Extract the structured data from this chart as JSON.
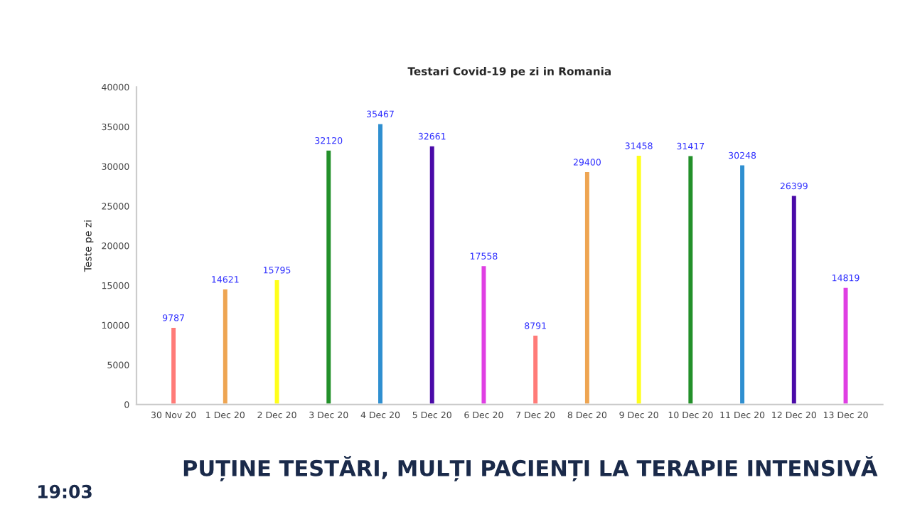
{
  "chart_data": {
    "type": "bar",
    "title": "Testari Covid-19 pe zi in Romania",
    "ylabel": "Teste pe zi",
    "categories": [
      "30 Nov 20",
      "1 Dec 20",
      "2 Dec 20",
      "3 Dec 20",
      "4 Dec 20",
      "5 Dec 20",
      "6 Dec 20",
      "7 Dec 20",
      "8 Dec 20",
      "9 Dec 20",
      "10 Dec 20",
      "11 Dec 20",
      "12 Dec 20",
      "13 Dec 20"
    ],
    "values": [
      9787,
      14621,
      15795,
      32120,
      35467,
      32661,
      17558,
      8791,
      29400,
      31458,
      31417,
      30248,
      26399,
      14819
    ],
    "colors": [
      "#ff7b78",
      "#eea552",
      "#ffff1a",
      "#23902a",
      "#2f8fd0",
      "#4a0aa8",
      "#df3fe3",
      "#ff7b78",
      "#eea552",
      "#ffff1a",
      "#23902a",
      "#2f8fd0",
      "#4a0aa8",
      "#df3fe3"
    ],
    "ylim": [
      0,
      40000
    ],
    "yticks": [
      0,
      5000,
      10000,
      15000,
      20000,
      25000,
      30000,
      35000,
      40000
    ],
    "data_labels": true,
    "grid": false,
    "annotations": [
      "PUȚINE TESTĂRI, MULȚI PACIENȚI LA TERAPIE INTENSIVĂ",
      "19:03"
    ]
  }
}
